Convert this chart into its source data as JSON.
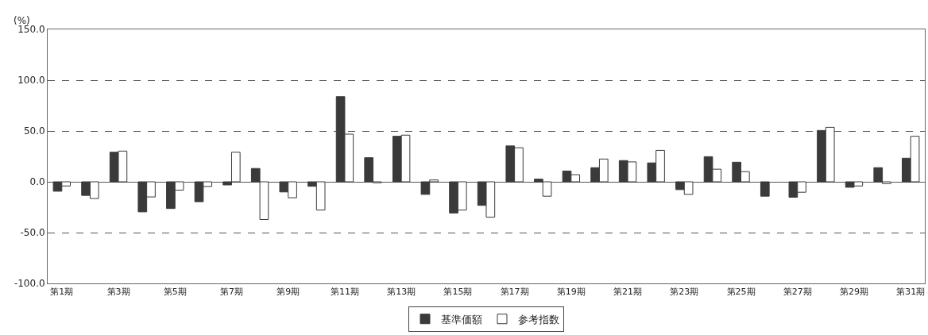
{
  "chart_data": {
    "type": "bar",
    "ylabel": "(%)",
    "categories": [
      "第1期",
      null,
      "第3期",
      null,
      "第5期",
      null,
      "第7期",
      null,
      "第9期",
      null,
      "第11期",
      null,
      "第13期",
      null,
      "第15期",
      null,
      "第17期",
      null,
      "第19期",
      null,
      "第21期",
      null,
      "第23期",
      null,
      "第25期",
      null,
      "第27期",
      null,
      "第29期",
      null,
      "第31期"
    ],
    "series": [
      {
        "name": "基準価額",
        "color": "#3a3a3a",
        "values": [
          -9.3,
          -13.4,
          29.1,
          -29.6,
          -26.3,
          -19.6,
          -3.1,
          13.1,
          -10.0,
          -4.4,
          83.8,
          23.7,
          44.8,
          -12.4,
          -30.7,
          -23.2,
          35.3,
          2.6,
          10.6,
          13.9,
          20.9,
          18.6,
          -7.7,
          24.7,
          19.3,
          -14.2,
          -15.2,
          50.5,
          -5.4,
          13.9,
          23.2
        ]
      },
      {
        "name": "参考指数",
        "color": "#ffffff",
        "values": [
          -4.1,
          -16.5,
          30.2,
          -14.9,
          -8.2,
          -4.6,
          29.1,
          -37.1,
          -15.7,
          -27.8,
          46.9,
          -1.0,
          45.9,
          1.8,
          -27.8,
          -34.8,
          33.5,
          -14.2,
          7.0,
          22.4,
          19.6,
          30.9,
          -12.4,
          12.4,
          10.0,
          null,
          -10.3,
          53.6,
          -4.1,
          -1.8,
          44.8
        ]
      }
    ],
    "ylim": [
      -100,
      150
    ],
    "yticks": [
      {
        "value": -100,
        "label": "-100.0"
      },
      {
        "value": -50,
        "label": "-50.0"
      },
      {
        "value": 0,
        "label": "0.0"
      },
      {
        "value": 50,
        "label": "50.0"
      },
      {
        "value": 100,
        "label": "100.0"
      },
      {
        "value": 150,
        "label": "150.0"
      }
    ],
    "grid": "y",
    "line_style": "dashed",
    "legend": "bottom"
  }
}
